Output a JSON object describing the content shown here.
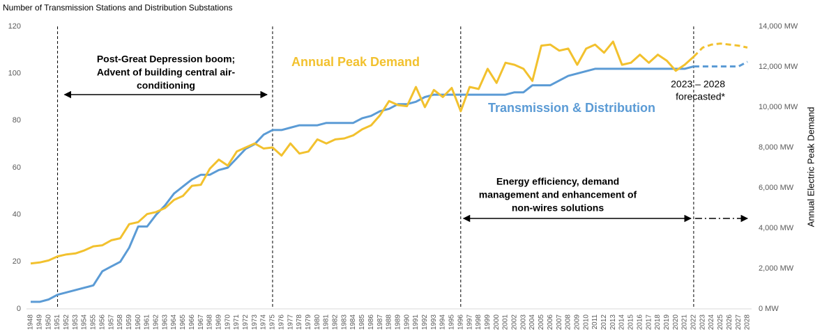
{
  "chart_data": {
    "type": "line",
    "title": "Number of Transmission Stations and Distribution Substations",
    "y2_label": "Annual Electric Peak Demand",
    "categories": [
      "1948",
      "1949",
      "1950",
      "1951",
      "1952",
      "1953",
      "1954",
      "1955",
      "1956",
      "1957",
      "1958",
      "1959",
      "1960",
      "1961",
      "1962",
      "1963",
      "1964",
      "1965",
      "1966",
      "1967",
      "1968",
      "1969",
      "1970",
      "1971",
      "1972",
      "1973",
      "1974",
      "1975",
      "1976",
      "1977",
      "1978",
      "1979",
      "1980",
      "1981",
      "1982",
      "1983",
      "1984",
      "1985",
      "1986",
      "1987",
      "1988",
      "1989",
      "1990",
      "1991",
      "1992",
      "1993",
      "1994",
      "1995",
      "1996",
      "1997",
      "1998",
      "1999",
      "2000",
      "2001",
      "2002",
      "2003",
      "2004",
      "2005",
      "2006",
      "2007",
      "2008",
      "2009",
      "2010",
      "2011",
      "2012",
      "2013",
      "2014",
      "2015",
      "2016",
      "2017",
      "2018",
      "2019",
      "2020",
      "2021",
      "2022",
      "2023",
      "2024",
      "2025",
      "2026",
      "2027",
      "2028"
    ],
    "series": [
      {
        "name": "Transmission & Distribution",
        "color": "#5b9bd5",
        "dashed_from": "2022",
        "values": [
          3,
          3,
          4,
          6,
          7,
          8,
          9,
          10,
          16,
          18,
          20,
          26,
          35,
          35,
          40,
          44,
          49,
          52,
          55,
          57,
          57,
          59,
          60,
          64,
          68,
          70,
          74,
          76,
          76,
          77,
          78,
          78,
          78,
          79,
          79,
          79,
          79,
          81,
          82,
          84,
          85,
          87,
          87,
          88,
          90,
          91,
          91,
          91,
          91,
          91,
          91,
          91,
          91,
          91,
          92,
          92,
          95,
          95,
          95,
          97,
          99,
          100,
          101,
          102,
          102,
          102,
          102,
          102,
          102,
          102,
          102,
          102,
          102,
          102,
          103,
          103,
          103,
          103,
          103,
          103,
          105
        ]
      },
      {
        "name": "Annual Peak Demand",
        "color": "#f2c12e",
        "axis": "y2",
        "dashed_from": "2022",
        "values": [
          2250,
          2300,
          2400,
          2600,
          2700,
          2750,
          2900,
          3100,
          3150,
          3400,
          3500,
          4200,
          4300,
          4700,
          4800,
          5000,
          5400,
          5600,
          6100,
          6150,
          6950,
          7400,
          7100,
          7800,
          8000,
          8200,
          7950,
          8000,
          7600,
          8200,
          7700,
          7800,
          8400,
          8200,
          8400,
          8450,
          8600,
          8900,
          9100,
          9600,
          10300,
          10100,
          10050,
          11000,
          10000,
          10850,
          10500,
          10950,
          9800,
          11000,
          10900,
          11900,
          11200,
          12200,
          12100,
          11900,
          11300,
          13050,
          13100,
          12800,
          12900,
          12100,
          12900,
          13100,
          12700,
          13250,
          12100,
          12200,
          12600,
          12200,
          12600,
          12300,
          11800,
          12100,
          12500,
          12950,
          13100,
          13150,
          13100,
          13050,
          12950
        ]
      }
    ],
    "ylim": [
      0,
      120
    ],
    "yticks": [
      0,
      20,
      40,
      60,
      80,
      100,
      120
    ],
    "y2lim": [
      0,
      14000
    ],
    "y2ticks": [
      {
        "value": 0,
        "label": "0 MW"
      },
      {
        "value": 2000,
        "label": "2,000 MW"
      },
      {
        "value": 4000,
        "label": "4,000 MW"
      },
      {
        "value": 6000,
        "label": "6,000 MW"
      },
      {
        "value": 8000,
        "label": "8,000 MW"
      },
      {
        "value": 10000,
        "label": "10,000 MW"
      },
      {
        "value": 12000,
        "label": "12,000 MW"
      },
      {
        "value": 14000,
        "label": "14,000 MW"
      }
    ],
    "reference_lines": [
      "1951",
      "1975",
      "1996",
      "2022"
    ],
    "annotations": [
      {
        "lines": [
          "Post-Great Depression boom;",
          "Advent of building central air-",
          "conditioning"
        ]
      },
      {
        "lines": [
          "Energy efficiency, demand",
          "management and enhancement of",
          "non-wires solutions"
        ]
      },
      {
        "lines": [
          "2023 – 2028",
          "forecasted*"
        ]
      }
    ]
  }
}
